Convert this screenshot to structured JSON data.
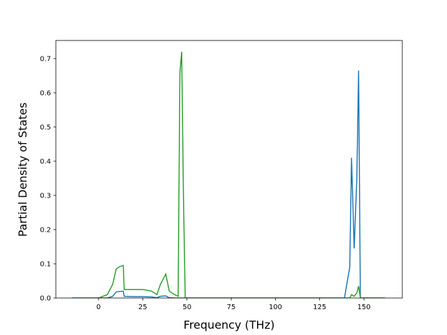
{
  "chart_data": {
    "type": "line",
    "xlabel": "Frequency (THz)",
    "ylabel": "Partial Density of States",
    "x": [
      -15,
      0,
      5,
      8,
      10,
      12,
      14,
      14.5,
      20,
      25,
      30,
      33,
      35,
      38,
      40,
      43,
      45,
      46,
      47,
      48,
      49,
      139,
      142,
      143,
      144.5,
      146,
      147,
      148,
      162
    ],
    "series": [
      {
        "color": "#1f77b4",
        "values": [
          0,
          0,
          0,
          0.005,
          0.018,
          0.019,
          0.02,
          0.005,
          0.004,
          0.004,
          0.003,
          0.001,
          0.005,
          0.006,
          0.001,
          0,
          0,
          0,
          0,
          0,
          0,
          0,
          0.09,
          0.41,
          0.145,
          0.35,
          0.665,
          0,
          0
        ]
      },
      {
        "color": "#2ca02c",
        "values": [
          0,
          0,
          0.01,
          0.04,
          0.085,
          0.092,
          0.095,
          0.025,
          0.025,
          0.025,
          0.02,
          0.01,
          0.04,
          0.07,
          0.02,
          0.01,
          0.005,
          0.66,
          0.72,
          0.3,
          0,
          0,
          0,
          0.01,
          0.005,
          0.015,
          0.035,
          0,
          0
        ]
      }
    ],
    "xlim": [
      -24.1,
      171.7
    ],
    "ylim": [
      0,
      0.753
    ],
    "xticks": [
      0,
      25,
      50,
      75,
      100,
      125,
      150
    ],
    "yticks": [
      {
        "value": 0,
        "label": "0.0"
      },
      0.1,
      0.2,
      0.3,
      0.4,
      0.5,
      0.6,
      0.7
    ],
    "grid": false
  }
}
